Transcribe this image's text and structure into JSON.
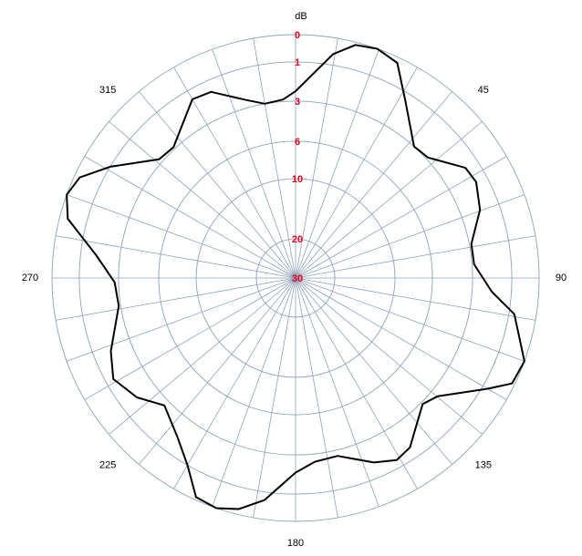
{
  "chart_data": {
    "type": "polar",
    "r_label": "dB",
    "theta": [
      0,
      9.5,
      14.4,
      19.6,
      25.3,
      31.8,
      42,
      47.7,
      57,
      62,
      69.7,
      79,
      85.6,
      94,
      99.4,
      110,
      116,
      120,
      129.8,
      134.8,
      146,
      151,
      157,
      166.7,
      174,
      180,
      188,
      193.8,
      199,
      204.4,
      210,
      216.4,
      225.8,
      233,
      241,
      248.4,
      261,
      268.6,
      276.5,
      284.6,
      290,
      295,
      301,
      311,
      317,
      330,
      335.6,
      344.5,
      350,
      356
    ],
    "values": [
      2.5,
      0.6,
      0.1,
      0,
      0.2,
      1.4,
      3.0,
      2.9,
      1.7,
      1.6,
      2.0,
      2.9,
      2.9,
      2.0,
      0.8,
      0,
      0.1,
      0.8,
      2.6,
      2.9,
      1.6,
      1.4,
      1.8,
      2.7,
      2.6,
      2.1,
      0.7,
      0.2,
      0,
      0.1,
      1.0,
      1.9,
      2.7,
      1.9,
      1.4,
      1.9,
      2.9,
      2.8,
      1.8,
      0.3,
      0,
      0.2,
      1.0,
      2.8,
      2.9,
      1.5,
      1.6,
      2.6,
      3.0,
      2.9
    ],
    "color": "#000000",
    "rlim": [
      0,
      30
    ],
    "rticks": [
      0,
      1,
      3,
      6,
      10,
      20,
      30
    ],
    "thetaticks": [
      45,
      90,
      135,
      180,
      225,
      270,
      315
    ],
    "theta_grid_step": 10,
    "grid": true
  }
}
